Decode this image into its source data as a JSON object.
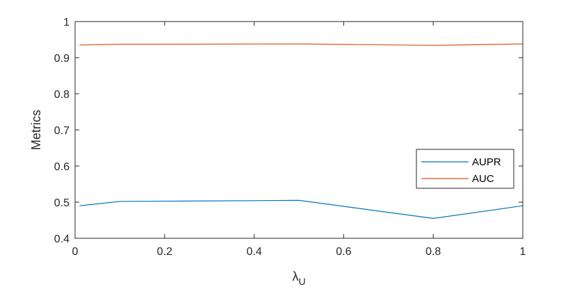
{
  "chart_data": {
    "type": "line",
    "xlabel": {
      "symbol": "λ",
      "subscript": "U"
    },
    "ylabel": "Metrics",
    "xlim": [
      0,
      1
    ],
    "ylim": [
      0.4,
      1
    ],
    "x_ticks": [
      0,
      0.2,
      0.4,
      0.6,
      0.8,
      1
    ],
    "x_tick_labels": [
      "0",
      "0.2",
      "0.4",
      "0.6",
      "0.8",
      "1"
    ],
    "y_ticks": [
      0.4,
      0.5,
      0.6,
      0.7,
      0.8,
      0.9,
      1
    ],
    "y_tick_labels": [
      "0.4",
      "0.5",
      "0.6",
      "0.7",
      "0.8",
      "0.9",
      "1"
    ],
    "grid": false,
    "legend_position": "right",
    "series": [
      {
        "name": "AUPR",
        "color": "#0072bd",
        "x": [
          0.01,
          0.1,
          0.5,
          0.8,
          1.0
        ],
        "y": [
          0.49,
          0.502,
          0.505,
          0.455,
          0.49
        ]
      },
      {
        "name": "AUC",
        "color": "#d95319",
        "x": [
          0.01,
          0.1,
          0.5,
          0.8,
          1.0
        ],
        "y": [
          0.935,
          0.937,
          0.938,
          0.934,
          0.938
        ]
      }
    ]
  }
}
